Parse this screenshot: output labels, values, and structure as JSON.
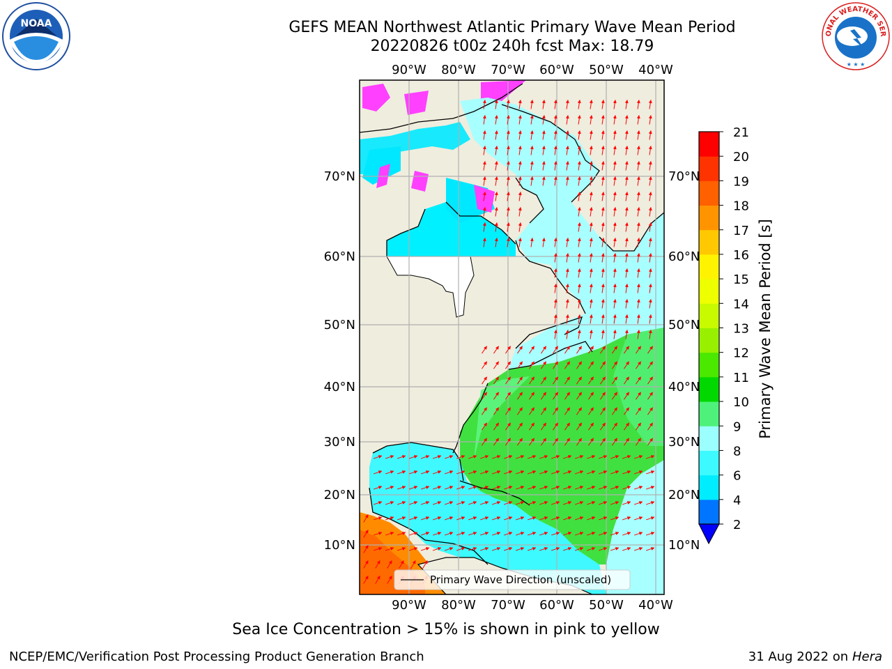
{
  "header": {
    "title_line1": "GEFS MEAN Northwest Atlantic Primary Wave Mean Period",
    "title_line2": "20220826 t00z 240h fcst   Max: 18.79"
  },
  "logos": {
    "noaa": "NOAA",
    "nws": "NATIONAL WEATHER SERVICE"
  },
  "map": {
    "lon_labels": [
      "90°W",
      "80°W",
      "70°W",
      "60°W",
      "50°W",
      "40°W"
    ],
    "lat_labels": [
      "70°N",
      "60°N",
      "50°N",
      "40°N",
      "30°N",
      "20°N",
      "10°N"
    ],
    "legend_label": "Primary Wave Direction (unscaled)",
    "land_color": "#efedde",
    "arrow_color": "#ff0000"
  },
  "colorbar": {
    "title": "Primary Wave Mean Period [s]",
    "ticks": [
      "2",
      "4",
      "6",
      "8",
      "9",
      "10",
      "11",
      "12",
      "13",
      "14",
      "15",
      "16",
      "17",
      "18",
      "19",
      "20",
      "21"
    ],
    "colors": [
      "#0075ff",
      "#00ecff",
      "#3cfaff",
      "#9cffff",
      "#4ef27a",
      "#00d800",
      "#4be800",
      "#98f000",
      "#c8fa00",
      "#eeff00",
      "#fff300",
      "#ffc800",
      "#ff9400",
      "#ff6000",
      "#ff3300",
      "#ff0000"
    ],
    "under_color": "#0000ff"
  },
  "footer": {
    "note": "Sea Ice Concentration > 15% is shown in pink to yellow",
    "org": "NCEP/EMC/Verification Post Processing Product Generation Branch",
    "date": "31 Aug 2022 on",
    "host": "Hera"
  }
}
